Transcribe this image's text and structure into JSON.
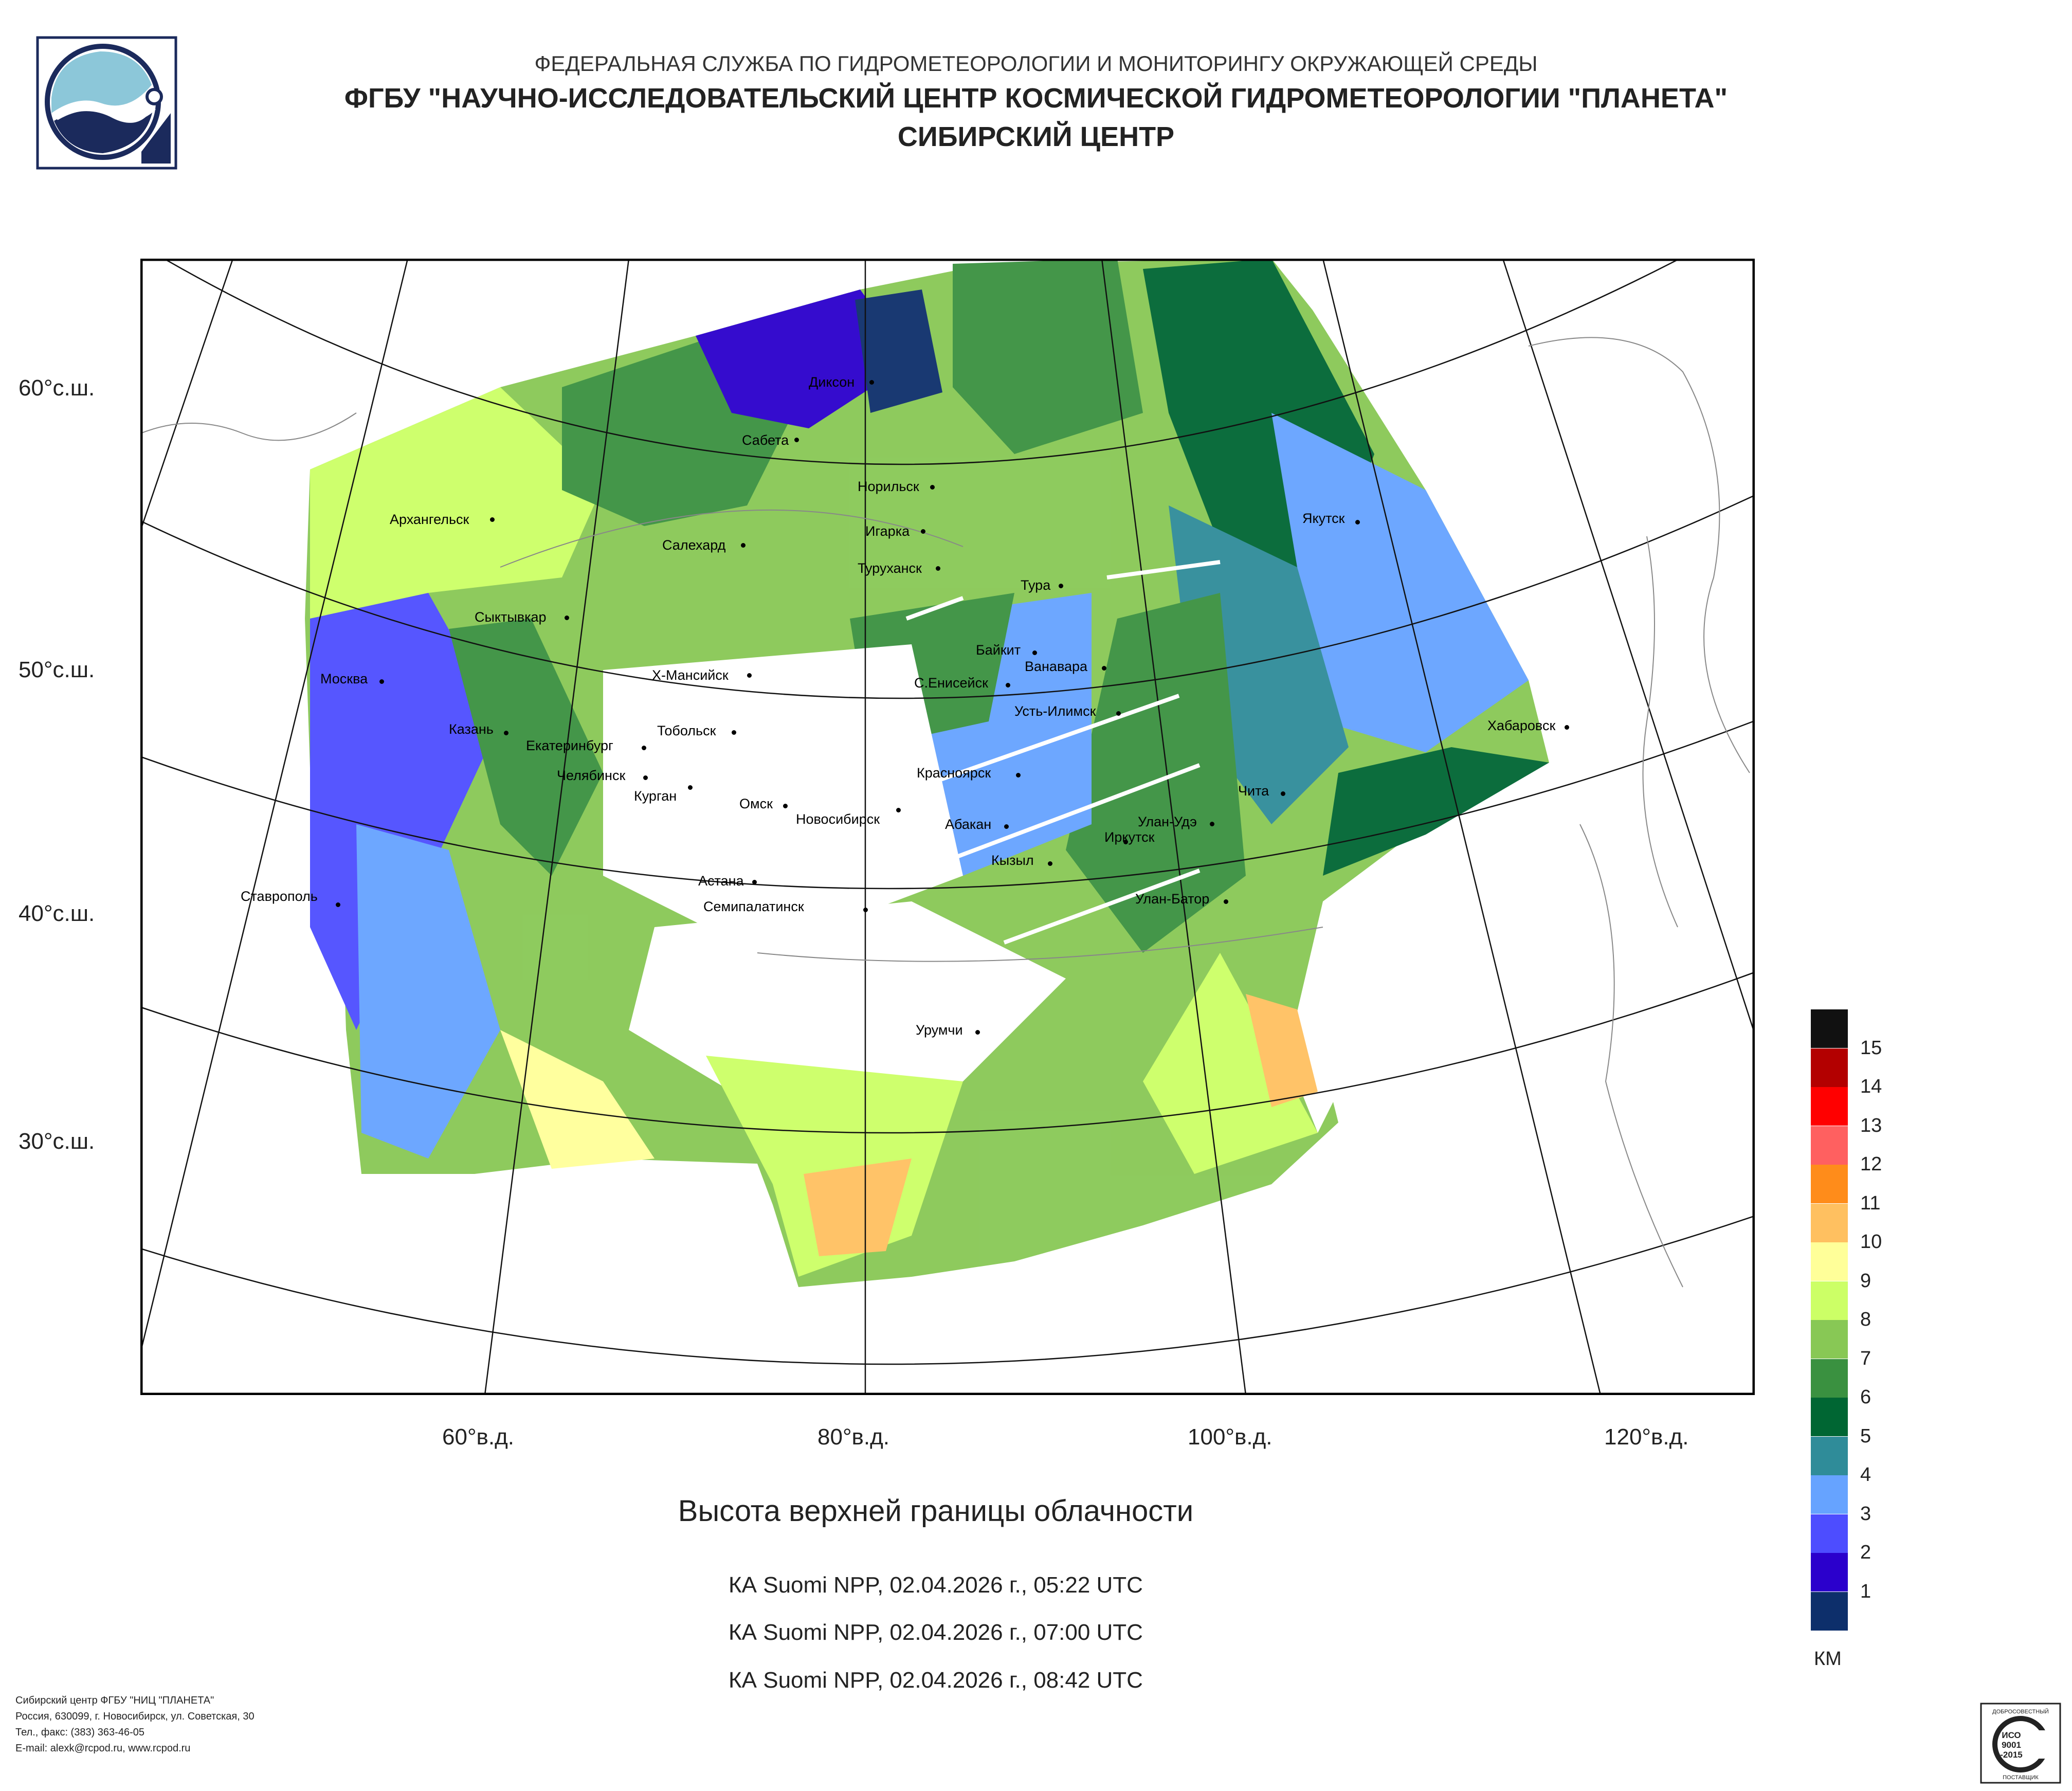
{
  "header": {
    "line1": "ФЕДЕРАЛЬНАЯ СЛУЖБА ПО ГИДРОМЕТЕОРОЛОГИИ И МОНИТОРИНГУ ОКРУЖАЮЩЕЙ СРЕДЫ",
    "line2": "ФГБУ \"НАУЧНО-ИССЛЕДОВАТЕЛЬСКИЙ ЦЕНТР КОСМИЧЕСКОЙ ГИДРОМЕТЕОРОЛОГИИ \"ПЛАНЕТА\"",
    "line3": "СИБИРСКИЙ ЦЕНТР"
  },
  "map": {
    "lat_labels": [
      "60°с.ш.",
      "50°с.ш.",
      "40°с.ш.",
      "30°с.ш."
    ],
    "lon_labels": [
      "60°в.д.",
      "80°в.д.",
      "100°в.д.",
      "120°в.д."
    ],
    "cities": [
      "Диксон",
      "Сабета",
      "Норильск",
      "Игарка",
      "Туруханск",
      "Архангельск",
      "Салехард",
      "Тура",
      "Якутск",
      "Сыктывкар",
      "Байкит",
      "Ванавара",
      "Х-Мансийск",
      "С.Енисейск",
      "Москва",
      "Усть-Илимск",
      "Казань",
      "Тобольск",
      "Екатеринбург",
      "Хабаровск",
      "Челябинск",
      "Красноярск",
      "Курган",
      "Омск",
      "Чита",
      "Новосибирск",
      "Улан-Удэ",
      "Абакан",
      "Иркутск",
      "Кызыл",
      "Астана",
      "Ставрополь",
      "Улан-Батор",
      "Семипалатинск",
      "Урумчи"
    ]
  },
  "title": "Высота верхней границы облачности",
  "passes": [
    "КА Suomi NPP, 02.04.2026 г., 05:22 UTC",
    "КА Suomi NPP, 02.04.2026 г., 07:00 UTC",
    "КА Suomi NPP, 02.04.2026 г., 08:42 UTC"
  ],
  "legend": {
    "unit": "КМ",
    "items": [
      {
        "label": "",
        "color": "#111111"
      },
      {
        "label": "15",
        "color": "#b30000"
      },
      {
        "label": "14",
        "color": "#ff0000"
      },
      {
        "label": "13",
        "color": "#ff6060"
      },
      {
        "label": "12",
        "color": "#ff8c1a"
      },
      {
        "label": "11",
        "color": "#ffc060"
      },
      {
        "label": "10",
        "color": "#ffff99"
      },
      {
        "label": "9",
        "color": "#ccff66"
      },
      {
        "label": "8",
        "color": "#88c855"
      },
      {
        "label": "7",
        "color": "#3a9140"
      },
      {
        "label": "6",
        "color": "#006633"
      },
      {
        "label": "5",
        "color": "#2f8c99"
      },
      {
        "label": "4",
        "color": "#66a3ff"
      },
      {
        "label": "3",
        "color": "#4d4dff"
      },
      {
        "label": "2",
        "color": "#2b00cc"
      },
      {
        "label": "1",
        "color": "#0d2f6b"
      }
    ]
  },
  "footer": {
    "line1": "Сибирский центр ФГБУ \"НИЦ \"ПЛАНЕТА\"",
    "line2": "Россия, 630099, г. Новосибирск, ул. Советская, 30",
    "line3": "Тел., факс: (383) 363-46-05",
    "line4": "E-mail: alexk@rcpod.ru, www.rcpod.ru"
  },
  "certificate": {
    "top": "ДОБРОСОВЕСТНЫЙ",
    "line1": "ИСО",
    "line2": "9001",
    "line3": "-2015",
    "bottom": "ПОСТАВЩИК"
  }
}
